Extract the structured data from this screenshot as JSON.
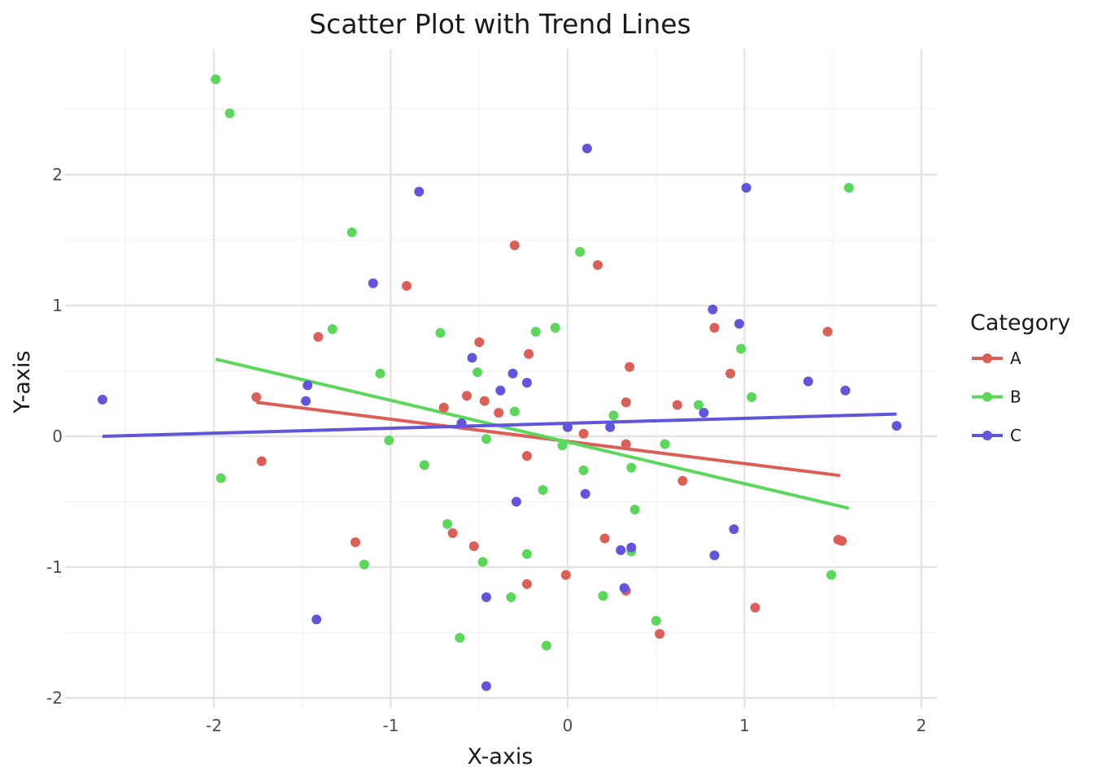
{
  "chart_data": {
    "type": "scatter",
    "title": "Scatter Plot with Trend Lines",
    "xlabel": "X-axis",
    "ylabel": "Y-axis",
    "xlim": [
      -2.8,
      2.08
    ],
    "ylim": [
      -2.08,
      2.98
    ],
    "xticks": [
      -2,
      -1,
      0,
      1,
      2
    ],
    "yticks": [
      -2,
      -1,
      0,
      1,
      2
    ],
    "xtick_labels": [
      "-2",
      "-1",
      "0",
      "1",
      "2"
    ],
    "ytick_labels": [
      "-2",
      "-1",
      "0",
      "1",
      "2"
    ],
    "grid": true,
    "legend": {
      "title": "Category",
      "position": "right"
    },
    "series": [
      {
        "name": "A",
        "color": "#db5f57",
        "points": [
          [
            -1.76,
            0.3
          ],
          [
            -1.73,
            -0.19
          ],
          [
            -1.41,
            0.76
          ],
          [
            -1.2,
            -0.81
          ],
          [
            -0.91,
            1.15
          ],
          [
            -0.7,
            0.22
          ],
          [
            -0.65,
            -0.74
          ],
          [
            -0.57,
            0.31
          ],
          [
            -0.53,
            -0.84
          ],
          [
            -0.5,
            0.72
          ],
          [
            -0.47,
            0.27
          ],
          [
            -0.39,
            0.18
          ],
          [
            -0.3,
            1.46
          ],
          [
            -0.23,
            -0.15
          ],
          [
            -0.23,
            -1.13
          ],
          [
            -0.22,
            0.63
          ],
          [
            -0.01,
            -1.06
          ],
          [
            0.09,
            0.02
          ],
          [
            0.17,
            1.31
          ],
          [
            0.21,
            -0.78
          ],
          [
            0.33,
            -0.06
          ],
          [
            0.33,
            0.26
          ],
          [
            0.33,
            -1.18
          ],
          [
            0.35,
            0.53
          ],
          [
            0.52,
            -1.51
          ],
          [
            0.62,
            0.24
          ],
          [
            0.65,
            -0.34
          ],
          [
            0.83,
            0.83
          ],
          [
            0.92,
            0.48
          ],
          [
            1.06,
            -1.31
          ],
          [
            1.47,
            0.8
          ],
          [
            1.53,
            -0.79
          ],
          [
            1.55,
            -0.8
          ]
        ],
        "trend": [
          [
            -1.76,
            0.26
          ],
          [
            1.54,
            -0.3
          ]
        ]
      },
      {
        "name": "B",
        "color": "#5bd85b",
        "points": [
          [
            -1.99,
            2.73
          ],
          [
            -1.91,
            2.47
          ],
          [
            -1.96,
            -0.32
          ],
          [
            -1.33,
            0.82
          ],
          [
            -1.22,
            1.56
          ],
          [
            -1.15,
            -0.98
          ],
          [
            -1.06,
            0.48
          ],
          [
            -1.01,
            -0.03
          ],
          [
            -0.81,
            -0.22
          ],
          [
            -0.72,
            0.79
          ],
          [
            -0.68,
            -0.67
          ],
          [
            -0.61,
            -1.54
          ],
          [
            -0.51,
            0.49
          ],
          [
            -0.48,
            -0.96
          ],
          [
            -0.46,
            -0.02
          ],
          [
            -0.32,
            -1.23
          ],
          [
            -0.3,
            0.19
          ],
          [
            -0.23,
            -0.9
          ],
          [
            -0.18,
            0.8
          ],
          [
            -0.14,
            -0.41
          ],
          [
            -0.12,
            -1.6
          ],
          [
            -0.07,
            0.83
          ],
          [
            -0.03,
            -0.07
          ],
          [
            0.07,
            1.41
          ],
          [
            0.09,
            -0.26
          ],
          [
            0.2,
            -1.22
          ],
          [
            0.26,
            0.16
          ],
          [
            0.36,
            -0.24
          ],
          [
            0.36,
            -0.88
          ],
          [
            0.38,
            -0.56
          ],
          [
            0.5,
            -1.41
          ],
          [
            0.55,
            -0.06
          ],
          [
            0.74,
            0.24
          ],
          [
            0.98,
            0.67
          ],
          [
            1.04,
            0.3
          ],
          [
            1.49,
            -1.06
          ],
          [
            1.59,
            1.9
          ]
        ],
        "trend": [
          [
            -1.99,
            0.59
          ],
          [
            1.59,
            -0.55
          ]
        ]
      },
      {
        "name": "C",
        "color": "#6156db",
        "points": [
          [
            -2.63,
            0.28
          ],
          [
            -1.48,
            0.27
          ],
          [
            -1.47,
            0.39
          ],
          [
            -1.42,
            -1.4
          ],
          [
            -1.1,
            1.17
          ],
          [
            -0.84,
            1.87
          ],
          [
            -0.6,
            0.1
          ],
          [
            -0.54,
            0.6
          ],
          [
            -0.46,
            -1.23
          ],
          [
            -0.46,
            -1.91
          ],
          [
            -0.38,
            0.35
          ],
          [
            -0.31,
            0.48
          ],
          [
            -0.29,
            -0.5
          ],
          [
            -0.23,
            0.41
          ],
          [
            0.0,
            0.07
          ],
          [
            0.1,
            -0.44
          ],
          [
            0.11,
            2.2
          ],
          [
            0.24,
            0.07
          ],
          [
            0.3,
            -0.87
          ],
          [
            0.32,
            -1.16
          ],
          [
            0.36,
            -0.85
          ],
          [
            0.77,
            0.18
          ],
          [
            0.82,
            0.97
          ],
          [
            0.83,
            -0.91
          ],
          [
            0.94,
            -0.71
          ],
          [
            0.97,
            0.86
          ],
          [
            1.01,
            1.9
          ],
          [
            1.36,
            0.42
          ],
          [
            1.57,
            0.35
          ],
          [
            1.86,
            0.08
          ]
        ],
        "trend": [
          [
            -2.63,
            0.0
          ],
          [
            1.86,
            0.17
          ]
        ]
      }
    ]
  }
}
